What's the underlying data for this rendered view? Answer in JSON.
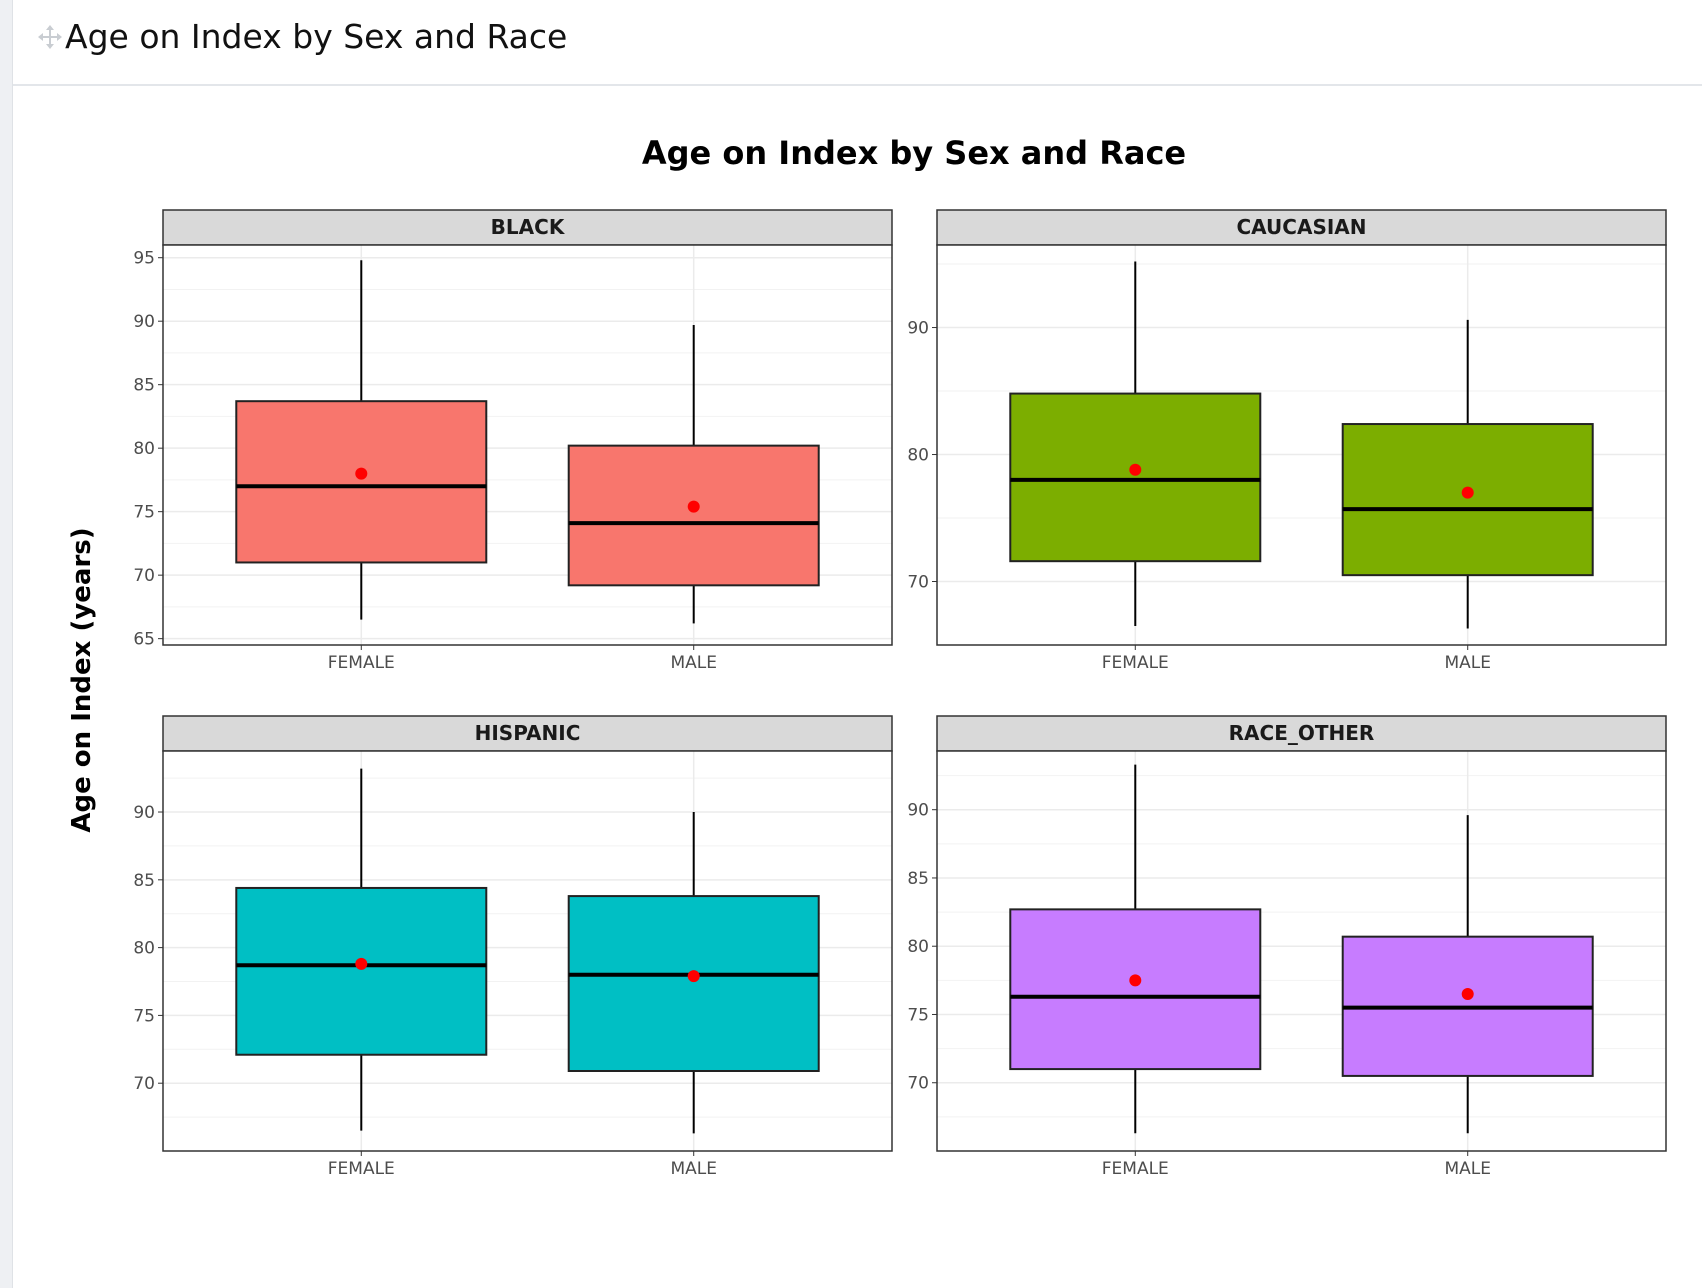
{
  "header": {
    "title": "Age on Index by Sex and Race",
    "drag_icon": "move-icon"
  },
  "chart_data": {
    "type": "boxplot",
    "title": "Age on Index by Sex and Race",
    "xlabel": "",
    "ylabel": "Age on Index (years)",
    "grid": true,
    "legend": "none",
    "mean_marker_color": "#ff0000",
    "categories": [
      "FEMALE",
      "MALE"
    ],
    "facets": [
      {
        "name": "BLACK",
        "color": "#f8766d",
        "ylim": [
          64.5,
          96
        ],
        "yticks": [
          65,
          70,
          75,
          80,
          85,
          90,
          95
        ],
        "boxes": [
          {
            "x": "FEMALE",
            "min": 66.5,
            "q1": 71,
            "median": 77,
            "q3": 83.7,
            "max": 94.8,
            "mean": 78
          },
          {
            "x": "MALE",
            "min": 66.2,
            "q1": 69.2,
            "median": 74.1,
            "q3": 80.2,
            "max": 89.7,
            "mean": 75.4
          }
        ]
      },
      {
        "name": "CAUCASIAN",
        "color": "#7cae00",
        "ylim": [
          65,
          96.5
        ],
        "yticks": [
          70,
          80,
          90
        ],
        "boxes": [
          {
            "x": "FEMALE",
            "min": 66.5,
            "q1": 71.6,
            "median": 78,
            "q3": 84.8,
            "max": 95.2,
            "mean": 78.8
          },
          {
            "x": "MALE",
            "min": 66.3,
            "q1": 70.5,
            "median": 75.7,
            "q3": 82.4,
            "max": 90.6,
            "mean": 77
          }
        ]
      },
      {
        "name": "HISPANIC",
        "color": "#00bfc4",
        "ylim": [
          65,
          94.5
        ],
        "yticks": [
          70,
          75,
          80,
          85,
          90
        ],
        "boxes": [
          {
            "x": "FEMALE",
            "min": 66.5,
            "q1": 72.1,
            "median": 78.7,
            "q3": 84.4,
            "max": 93.2,
            "mean": 78.8
          },
          {
            "x": "MALE",
            "min": 66.3,
            "q1": 70.9,
            "median": 78,
            "q3": 83.8,
            "max": 90,
            "mean": 77.9
          }
        ]
      },
      {
        "name": "RACE_OTHER",
        "color": "#c77cff",
        "ylim": [
          65,
          94.3
        ],
        "yticks": [
          70,
          75,
          80,
          85,
          90
        ],
        "boxes": [
          {
            "x": "FEMALE",
            "min": 66.3,
            "q1": 71,
            "median": 76.3,
            "q3": 82.7,
            "max": 93.3,
            "mean": 77.5
          },
          {
            "x": "MALE",
            "min": 66.3,
            "q1": 70.5,
            "median": 75.5,
            "q3": 80.7,
            "max": 89.6,
            "mean": 76.5
          }
        ]
      }
    ]
  }
}
